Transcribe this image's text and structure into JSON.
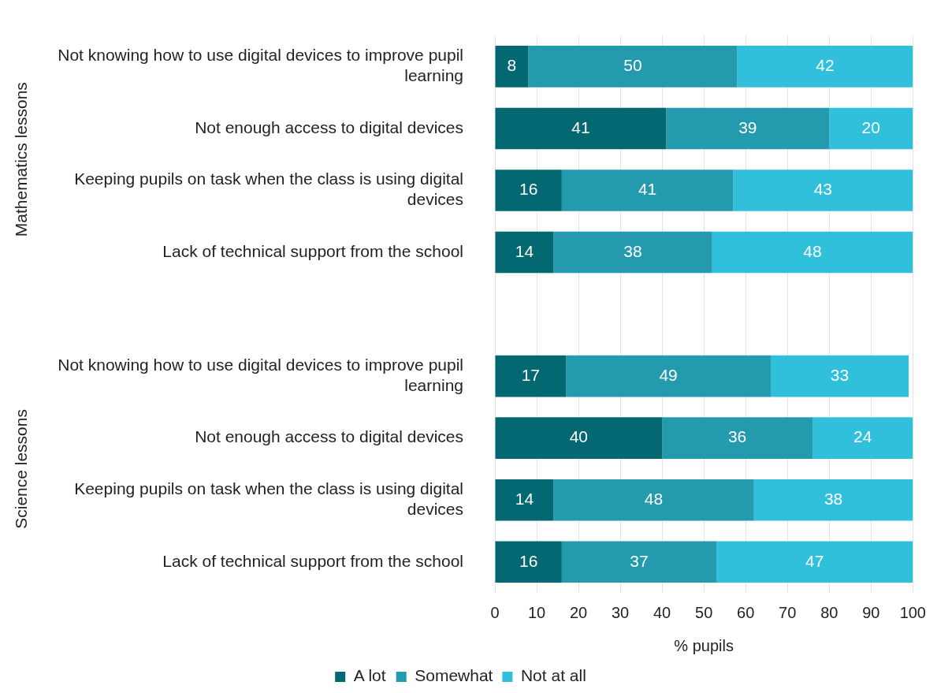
{
  "chart_data": {
    "type": "bar",
    "orientation": "horizontal",
    "stacked": true,
    "xlabel": "% pupils",
    "categories": [
      "Not knowing how to use digital devices to improve pupil learning",
      "Not enough access to digital devices",
      "Keeping pupils on task when the class is using digital devices",
      "Lack of technical support from the school",
      null,
      "Not knowing how to use digital devices to improve pupil learning",
      "Not enough access to digital devices",
      "Keeping pupils on task when the class is using digital devices",
      "Lack of technical support from the school"
    ],
    "series": [
      {
        "name": "A lot",
        "color": "#036872",
        "values": [
          8,
          41,
          16,
          14,
          null,
          17,
          40,
          14,
          16
        ]
      },
      {
        "name": "Somewhat",
        "color": "#249aae",
        "values": [
          50,
          39,
          41,
          38,
          null,
          49,
          36,
          48,
          37
        ]
      },
      {
        "name": "Not at all",
        "color": "#31c0db",
        "values": [
          42,
          20,
          43,
          48,
          null,
          33,
          24,
          38,
          47
        ]
      }
    ],
    "xlim": [
      0,
      100
    ],
    "xticks": [
      0,
      10,
      20,
      30,
      40,
      50,
      60,
      70,
      80,
      90,
      100
    ],
    "annotations": [
      "Mathematics lessons",
      "Science lessons"
    ],
    "data_labels": true,
    "grid": "x",
    "legend": "bottom"
  }
}
